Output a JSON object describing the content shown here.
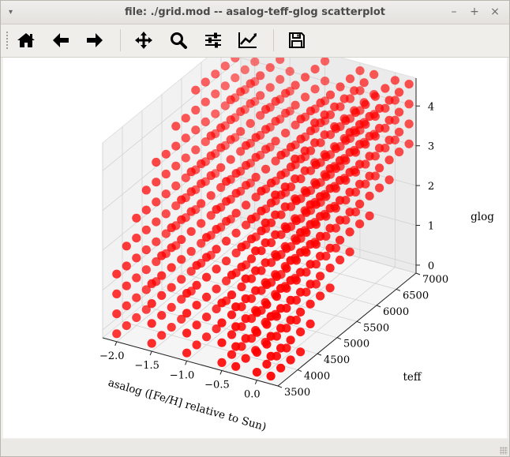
{
  "window": {
    "title": "file: ./grid.mod -- asalog-teff-glog scatterplot",
    "menu_glyph": "▾",
    "minimize_glyph": "–",
    "maximize_glyph": "+",
    "close_glyph": "×"
  },
  "toolbar": {
    "tools": [
      {
        "name": "home-button",
        "icon": "home-icon"
      },
      {
        "name": "back-button",
        "icon": "arrow-left-icon"
      },
      {
        "name": "forward-button",
        "icon": "arrow-right-icon"
      },
      {
        "name": "pan-button",
        "icon": "move-icon"
      },
      {
        "name": "zoom-button",
        "icon": "magnifier-icon"
      },
      {
        "name": "configure-subplots-button",
        "icon": "sliders-icon"
      },
      {
        "name": "edit-axes-button",
        "icon": "line-chart-icon"
      },
      {
        "name": "save-button",
        "icon": "floppy-disk-icon"
      }
    ]
  },
  "colors": {
    "points": "#ff0000",
    "pane": "#f2f2f2",
    "grid": "#d6d6d6"
  },
  "chart_data": {
    "type": "scatter",
    "projection": "3d",
    "title": "",
    "xlabel": "asalog ([Fe/H] relative to Sun)",
    "ylabel": "teff",
    "zlabel": "glog",
    "xlim": [
      -2.2,
      0.3
    ],
    "ylim": [
      3500,
      7000
    ],
    "zlim": [
      -0.2,
      4.7
    ],
    "xticks": [
      -2.0,
      -1.5,
      -1.0,
      -0.5,
      0.0
    ],
    "xtick_labels": [
      "−2.0",
      "−1.5",
      "−1.0",
      "−0.5",
      "0.0"
    ],
    "yticks": [
      3500,
      4000,
      4500,
      5000,
      5500,
      6000,
      6500,
      7000
    ],
    "ytick_labels": [
      "3500",
      "4000",
      "4500",
      "5000",
      "5500",
      "6000",
      "6500",
      "7000"
    ],
    "zticks": [
      0,
      1,
      2,
      3,
      4
    ],
    "ztick_labels": [
      "0",
      "1",
      "2",
      "3",
      "4"
    ],
    "grid": true,
    "marker_color": "#ff0000",
    "grid_axes": {
      "asalog": [
        -2.0,
        -1.5,
        -1.0,
        -0.5,
        -0.3,
        0.0,
        0.2
      ],
      "teff": [
        3500,
        3750,
        4000,
        4250,
        4500,
        4750,
        5000,
        5250,
        5500,
        5750,
        6000,
        6250,
        6500,
        6750,
        7000
      ],
      "glog": [
        0.0,
        0.5,
        1.0,
        1.5,
        2.0,
        2.5,
        3.0,
        3.5,
        4.0,
        4.5
      ]
    },
    "glog_teff_rule": {
      "teff_min_for_glog": [
        [
          0.0,
          3500
        ],
        [
          0.5,
          3500
        ],
        [
          1.0,
          3500
        ],
        [
          1.5,
          3500
        ],
        [
          2.0,
          3750
        ],
        [
          2.5,
          4000
        ],
        [
          3.0,
          4250
        ],
        [
          3.5,
          4500
        ],
        [
          4.0,
          5000
        ],
        [
          4.5,
          5500
        ]
      ],
      "teff_max_for_glog": [
        [
          0.0,
          4250
        ],
        [
          0.5,
          4500
        ],
        [
          1.0,
          5000
        ],
        [
          1.5,
          5500
        ],
        [
          2.0,
          6000
        ],
        [
          2.5,
          6500
        ],
        [
          3.0,
          7000
        ],
        [
          3.5,
          7000
        ],
        [
          4.0,
          7000
        ],
        [
          4.5,
          7000
        ]
      ]
    }
  }
}
